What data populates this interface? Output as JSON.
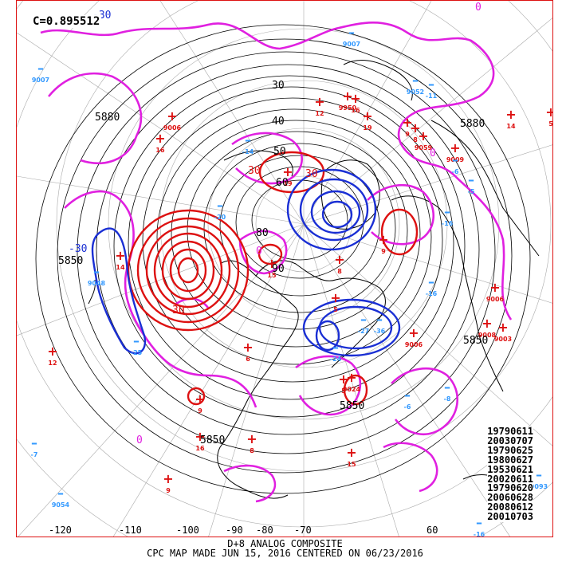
{
  "correlation_label": "C=0.895512",
  "analog_dates": [
    "19790611",
    "20030707",
    "19790625",
    "19800627",
    "19530621",
    "20020611",
    "19790620",
    "20060628",
    "20080612",
    "20010703"
  ],
  "longitude_labels": [
    "-120",
    "-110",
    "-100",
    "-90",
    "-80",
    "-70",
    "60"
  ],
  "footer": {
    "line1": "D+8 ANALOG COMPOSITE",
    "line2": "CPC MAP MADE JUN 15, 2016 CENTERED ON 06/23/2016"
  },
  "contour_labels": [
    "5880",
    "5850",
    "5850",
    "5880",
    "5850",
    "5850",
    "30",
    "40",
    "50",
    "60",
    "80",
    "90",
    "0",
    "0",
    "0",
    "-30",
    "-30",
    "30",
    "30",
    "30",
    "0"
  ],
  "colors": {
    "positive": "#dd1111",
    "negative": "#1a2fd4",
    "zero": "#e020e0",
    "height": "#000000",
    "station_pos": "#dd1111",
    "station_neg": "#3399ff"
  },
  "stations_pos": [
    "9006",
    "12",
    "16",
    "9950",
    "19",
    "9059",
    "16",
    "9",
    "8",
    "14",
    "5",
    "19",
    "15",
    "8",
    "9",
    "5",
    "14",
    "12",
    "6",
    "9024",
    "9006",
    "9008",
    "8",
    "15",
    "9",
    "9006",
    "5",
    "9",
    "9003",
    "9009",
    "16"
  ],
  "stations_neg": [
    "9007",
    "9007",
    "9052",
    "-11",
    "-6",
    "-5",
    "-14",
    "-20",
    "9048",
    "-16",
    "-16",
    "-25",
    "-27",
    "-36",
    "-24",
    "-6",
    "-8",
    "-7",
    "9093",
    "9054",
    "-16"
  ],
  "map_legend_icons": [
    "plus-icon",
    "minus-icon"
  ]
}
